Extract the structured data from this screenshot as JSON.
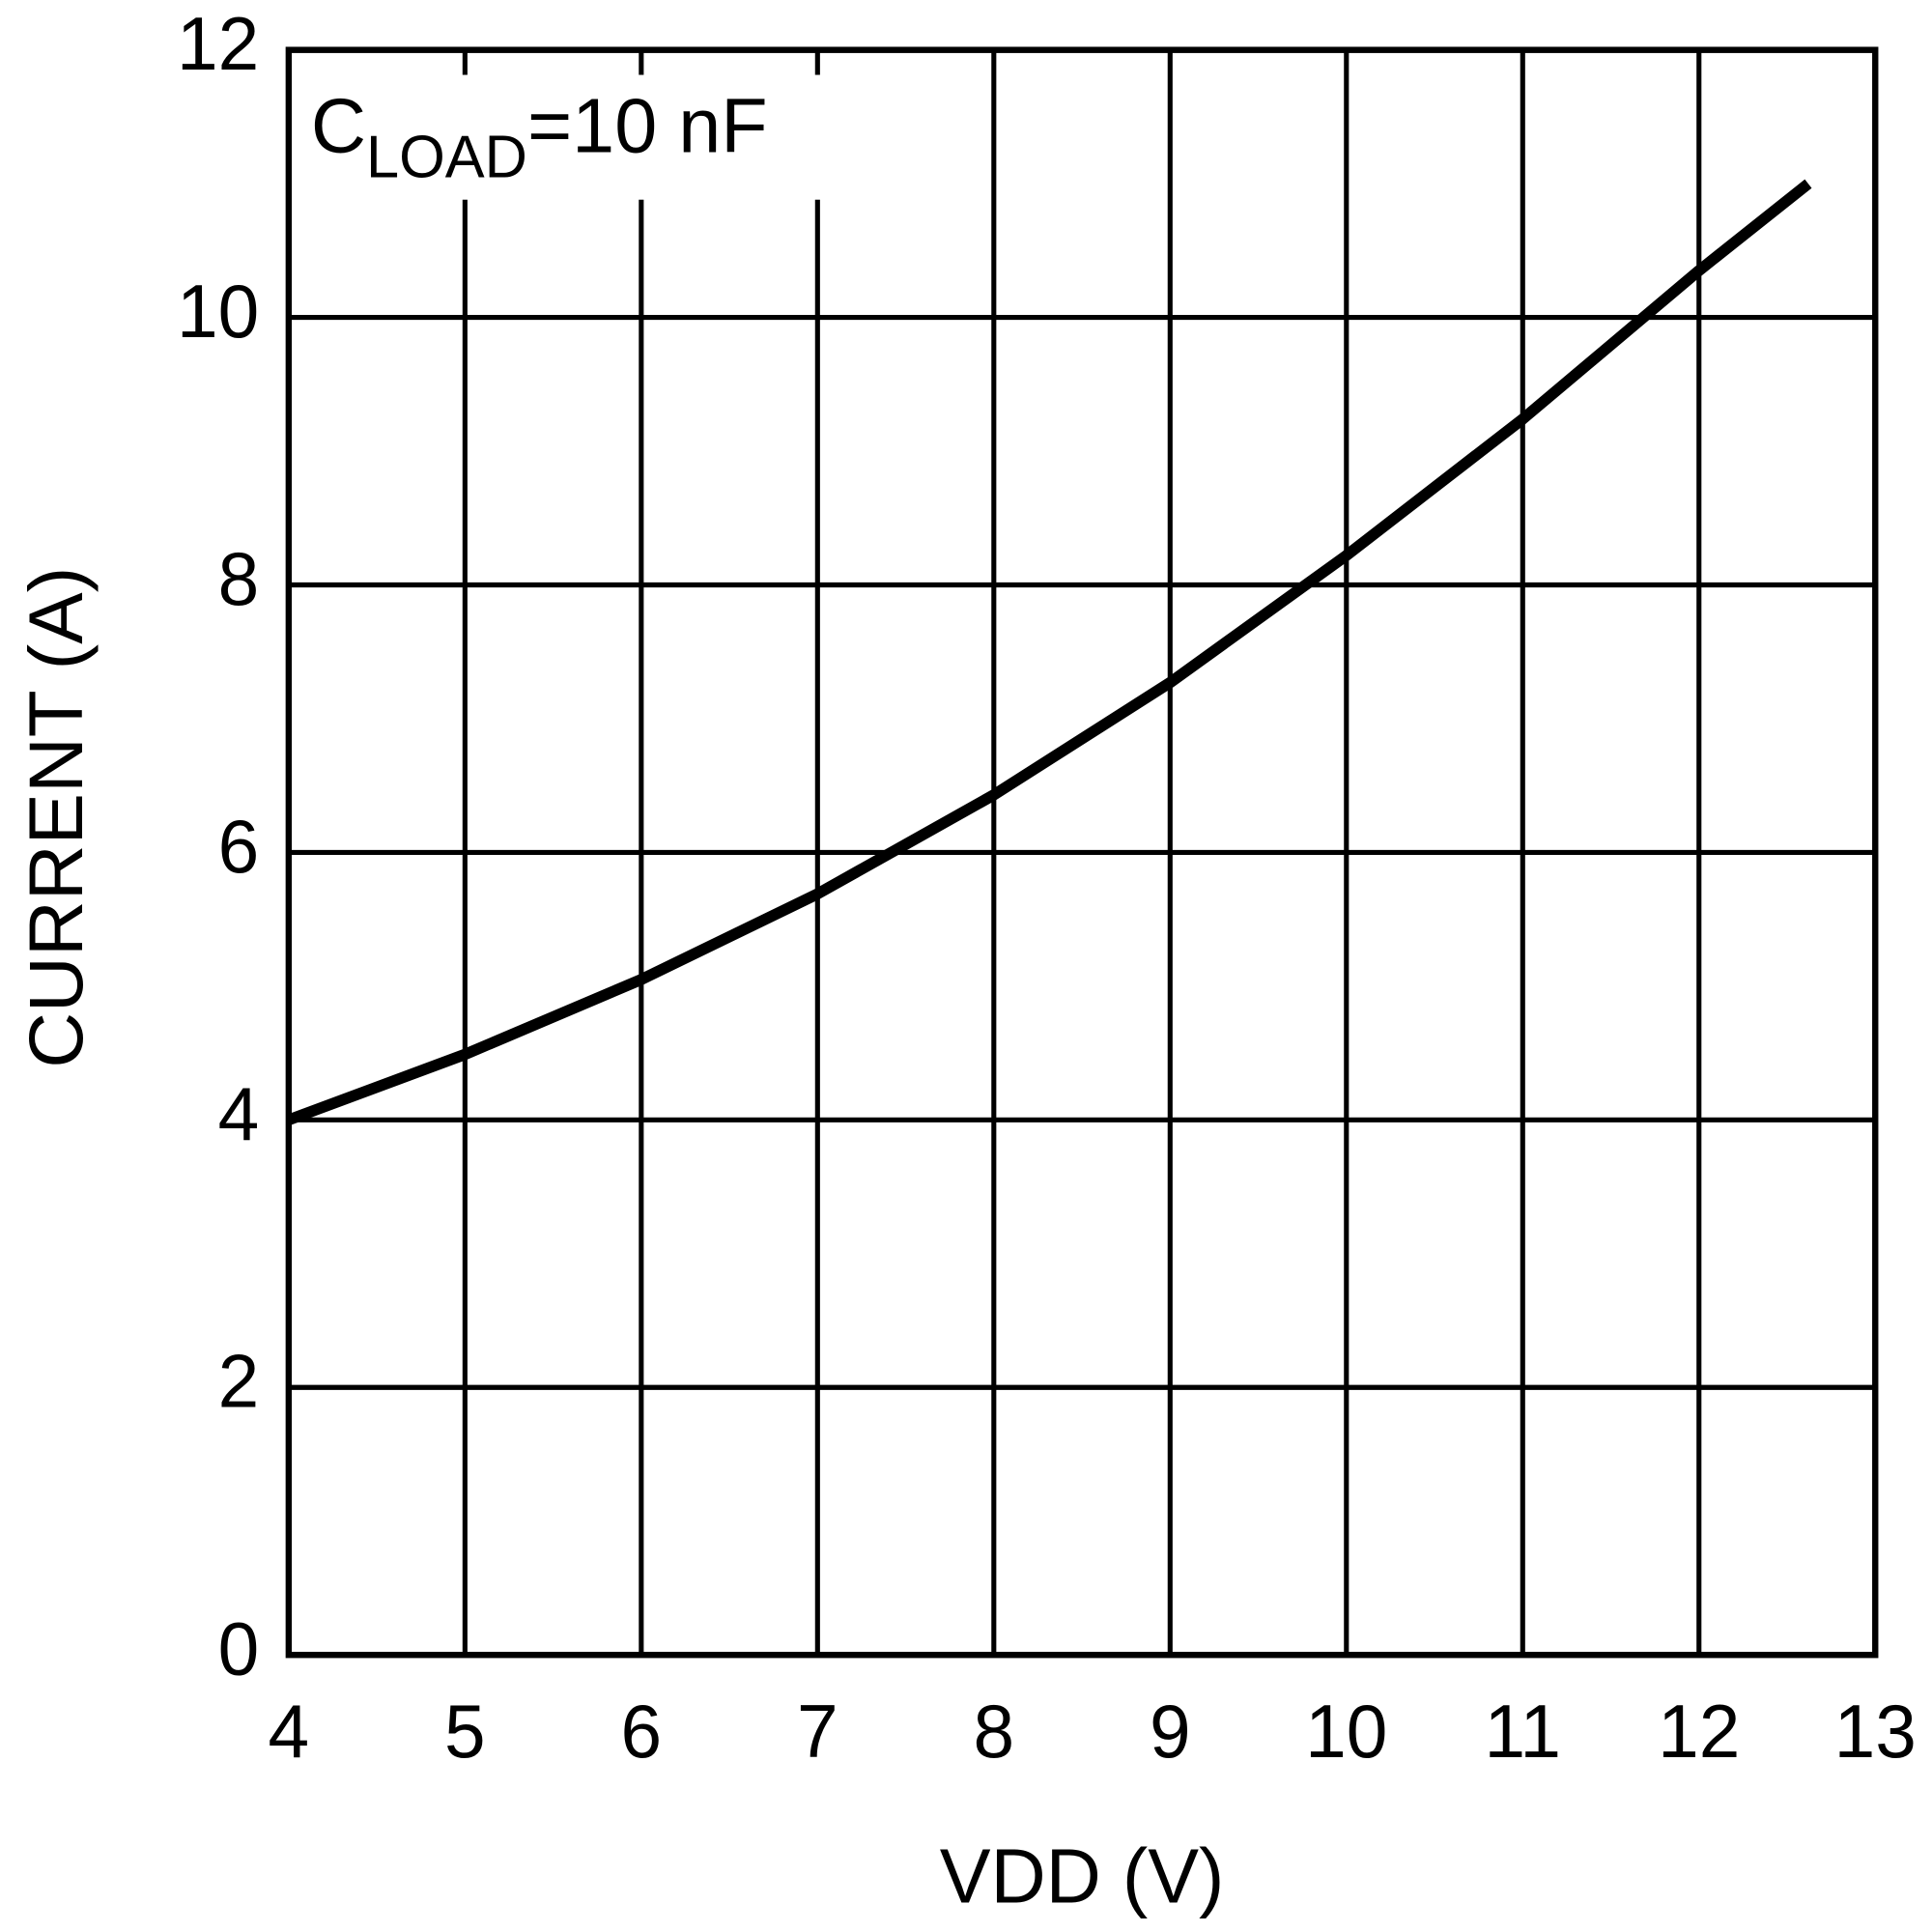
{
  "chart_data": {
    "type": "line",
    "annotation": {
      "main": "C",
      "subscript": "LOAD",
      "rest": "=10 nF"
    },
    "x_label": "VDD (V)",
    "y_label": "CURRENT (A)",
    "x": [
      4,
      5,
      6,
      7,
      8,
      9,
      10,
      11,
      12,
      12.62
    ],
    "series": [
      {
        "color": "#000000",
        "values": [
          4.0,
          4.49,
          5.05,
          5.69,
          6.43,
          7.27,
          8.22,
          9.24,
          10.35,
          11.0
        ]
      }
    ],
    "xlim": [
      4,
      13
    ],
    "xticks": [
      4,
      5,
      6,
      7,
      8,
      9,
      10,
      11,
      12,
      13
    ],
    "ylim": [
      0,
      12
    ],
    "yticks": [
      0,
      2,
      4,
      6,
      8,
      10,
      12
    ],
    "grid": true
  }
}
